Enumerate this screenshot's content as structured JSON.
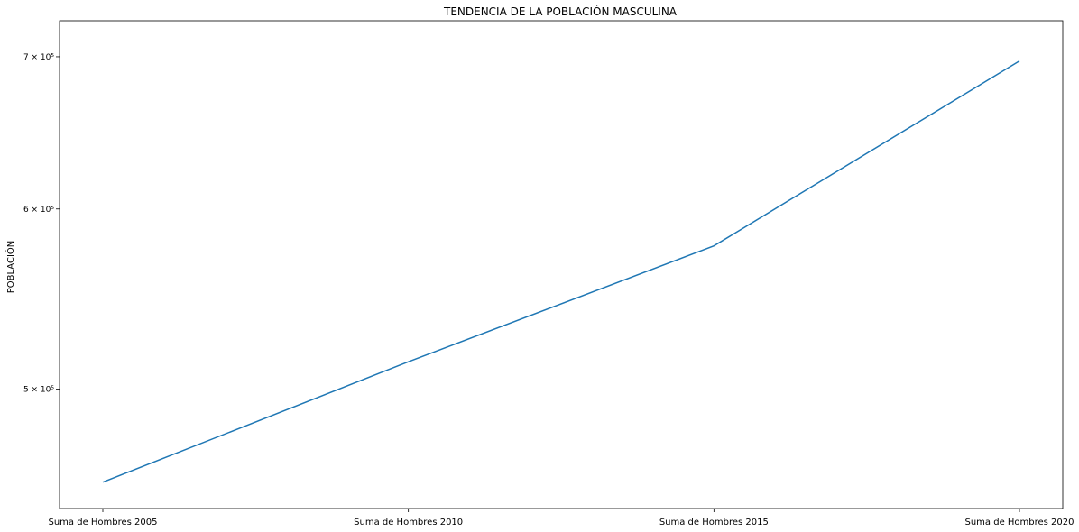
{
  "chart_data": {
    "type": "line",
    "title": "TENDENCIA DE LA POBLACIÓN MASCULINA",
    "xlabel": "",
    "ylabel": "POBLACIÓN",
    "yscale": "log",
    "categories": [
      "Suma de Hombres 2005",
      "Suma de Hombres 2010",
      "Suma de Hombres 2015",
      "Suma de Hombres 2020"
    ],
    "series": [
      {
        "values": [
          455000,
          514000,
          578000,
          697000
        ],
        "color": "#1f77b4"
      }
    ],
    "yticks": [
      {
        "value": 500000,
        "label": "5 × 10⁵"
      },
      {
        "value": 600000,
        "label": "6 × 10⁵"
      },
      {
        "value": 700000,
        "label": "7 × 10⁵"
      }
    ],
    "ylim": [
      443000,
      726000
    ],
    "grid": false,
    "legend": "none"
  }
}
